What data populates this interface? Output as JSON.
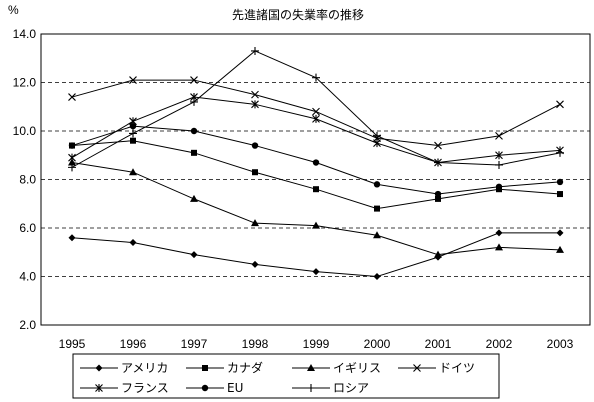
{
  "chart_data": {
    "type": "line",
    "title": "先進諸国の失業率の推移",
    "ylabel": "%",
    "xlabel": "",
    "x": [
      "1995",
      "1996",
      "1997",
      "1998",
      "1999",
      "2000",
      "2001",
      "2002",
      "2003"
    ],
    "ylim": [
      2.0,
      14.0
    ],
    "yticks": [
      "2.0",
      "4.0",
      "6.0",
      "8.0",
      "10.0",
      "12.0",
      "14.0"
    ],
    "grid": "horizontal-dashed",
    "legend_position": "bottom",
    "series": [
      {
        "name": "アメリカ",
        "marker": "diamond",
        "values": [
          5.6,
          5.4,
          4.9,
          4.5,
          4.2,
          4.0,
          4.8,
          5.8,
          5.8
        ]
      },
      {
        "name": "カナダ",
        "marker": "square",
        "values": [
          9.4,
          9.6,
          9.1,
          8.3,
          7.6,
          6.8,
          7.2,
          7.6,
          7.4
        ]
      },
      {
        "name": "イギリス",
        "marker": "triangle",
        "values": [
          8.7,
          8.3,
          7.2,
          6.2,
          6.1,
          5.7,
          4.9,
          5.2,
          5.1
        ]
      },
      {
        "name": "ドイツ",
        "marker": "x",
        "values": [
          11.4,
          12.1,
          12.1,
          11.5,
          10.8,
          9.7,
          9.4,
          9.8,
          11.1
        ]
      },
      {
        "name": "フランス",
        "marker": "asterisk",
        "values": [
          8.9,
          10.4,
          11.4,
          11.1,
          10.5,
          9.5,
          8.7,
          9.0,
          9.2
        ]
      },
      {
        "name": "EU",
        "marker": "circle",
        "values": [
          9.4,
          10.2,
          10.0,
          9.4,
          8.7,
          7.8,
          7.4,
          7.7,
          7.9
        ]
      },
      {
        "name": "ロシア",
        "marker": "plus",
        "values": [
          8.5,
          9.9,
          11.2,
          13.3,
          12.2,
          9.8,
          8.7,
          8.6,
          9.1
        ]
      }
    ],
    "line_color": "#000000",
    "grid_color": "#000000"
  }
}
